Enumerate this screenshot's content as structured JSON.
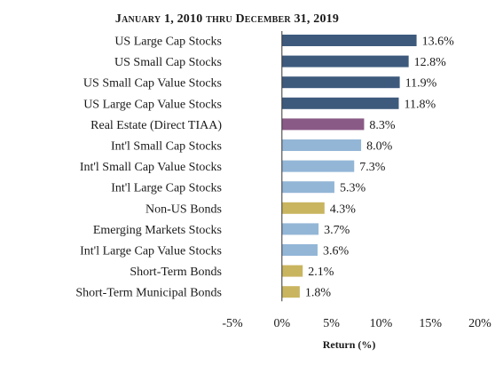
{
  "chart_data": {
    "type": "bar",
    "orientation": "horizontal",
    "title": "January 1, 2010 thru December 31, 2019",
    "xlabel": "Return (%)",
    "xlim": [
      -5,
      20
    ],
    "x_ticks": [
      -5,
      0,
      5,
      10,
      15,
      20
    ],
    "x_tick_labels": [
      "-5%",
      "0%",
      "5%",
      "10%",
      "15%",
      "20%"
    ],
    "grid": false,
    "legend": "none",
    "categories": [
      "US Large Cap Stocks",
      "US Small Cap Stocks",
      "US Small Cap Value Stocks",
      "US Large Cap Value Stocks",
      "Real Estate (Direct TIAA)",
      "Int'l Small Cap Stocks",
      "Int'l Small Cap Value Stocks",
      "Int'l Large Cap Stocks",
      "Non-US Bonds",
      "Emerging Markets Stocks",
      "Int'l Large Cap Value Stocks",
      "Short-Term Bonds",
      "Short-Term Municipal Bonds"
    ],
    "values": [
      13.6,
      12.8,
      11.9,
      11.8,
      8.3,
      8.0,
      7.3,
      5.3,
      4.3,
      3.7,
      3.6,
      2.1,
      1.8
    ],
    "value_labels": [
      "13.6%",
      "12.8%",
      "11.9%",
      "11.8%",
      "8.3%",
      "8.0%",
      "7.3%",
      "5.3%",
      "4.3%",
      "3.7%",
      "3.6%",
      "2.1%",
      "1.8%"
    ],
    "bar_colors": [
      "#3d5a7d",
      "#3d5a7d",
      "#3d5a7d",
      "#3d5a7d",
      "#8a5a86",
      "#93b6d6",
      "#93b6d6",
      "#93b6d6",
      "#c9b560",
      "#93b6d6",
      "#93b6d6",
      "#c9b560",
      "#c9b560"
    ]
  }
}
